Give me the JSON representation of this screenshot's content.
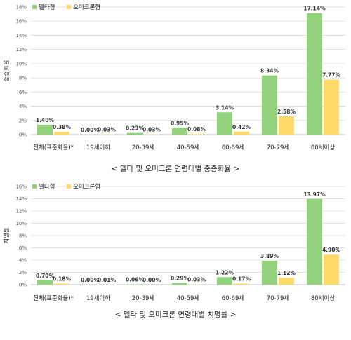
{
  "chart_data": [
    {
      "type": "bar",
      "title": "< 델타 및 오미크론 연령대별 중증화율 >",
      "xlabel": "",
      "ylabel": "중증화율",
      "ylim": [
        0,
        18
      ],
      "ytick_labels": [
        "0%",
        "2%",
        "4%",
        "6%",
        "8%",
        "10%",
        "12%",
        "14%",
        "16%",
        "18%"
      ],
      "categories": [
        "전체(표준화율)*",
        "19세이하",
        "20-39세",
        "40-59세",
        "60-69세",
        "70-79세",
        "80세이상"
      ],
      "series": [
        {
          "name": "델타형",
          "color": "#92d27a",
          "values": [
            1.4,
            0.0,
            0.23,
            0.95,
            3.14,
            8.34,
            17.14
          ],
          "labels": [
            "1.40%",
            "0.00%",
            "0.23%",
            "0.95%",
            "3.14%",
            "8.34%",
            "17.14%"
          ]
        },
        {
          "name": "오미크론형",
          "color": "#ffd966",
          "values": [
            0.38,
            0.03,
            0.03,
            0.08,
            0.42,
            2.58,
            7.77
          ],
          "labels": [
            "0.38%",
            "0.03%",
            "0.03%",
            "0.08%",
            "0.42%",
            "2.58%",
            "7.77%"
          ]
        }
      ],
      "grid": true,
      "legend": "top-left"
    },
    {
      "type": "bar",
      "title": "< 델타 및 오미크론 연령대별 치명률 >",
      "xlabel": "",
      "ylabel": "치명률",
      "ylim": [
        0,
        16
      ],
      "ytick_labels": [
        "0%",
        "2%",
        "4%",
        "6%",
        "8%",
        "10%",
        "12%",
        "14%",
        "16%"
      ],
      "categories": [
        "전체(표준화율)*",
        "19세이하",
        "20-39세",
        "40-59세",
        "60-69세",
        "70-79세",
        "80세이상"
      ],
      "series": [
        {
          "name": "델타형",
          "color": "#92d27a",
          "values": [
            0.7,
            0.0,
            0.06,
            0.29,
            1.22,
            3.89,
            13.97
          ],
          "labels": [
            "0.70%",
            "0.00%",
            "0.06%",
            "0.29%",
            "1.22%",
            "3.89%",
            "13.97%"
          ]
        },
        {
          "name": "오미크론형",
          "color": "#ffd966",
          "values": [
            0.18,
            0.01,
            0.0,
            0.03,
            0.17,
            1.12,
            4.9
          ],
          "labels": [
            "0.18%",
            "0.01%",
            "0.00%",
            "0.03%",
            "0.17%",
            "1.12%",
            "4.90%"
          ]
        }
      ],
      "grid": true,
      "legend": "top-left"
    }
  ]
}
